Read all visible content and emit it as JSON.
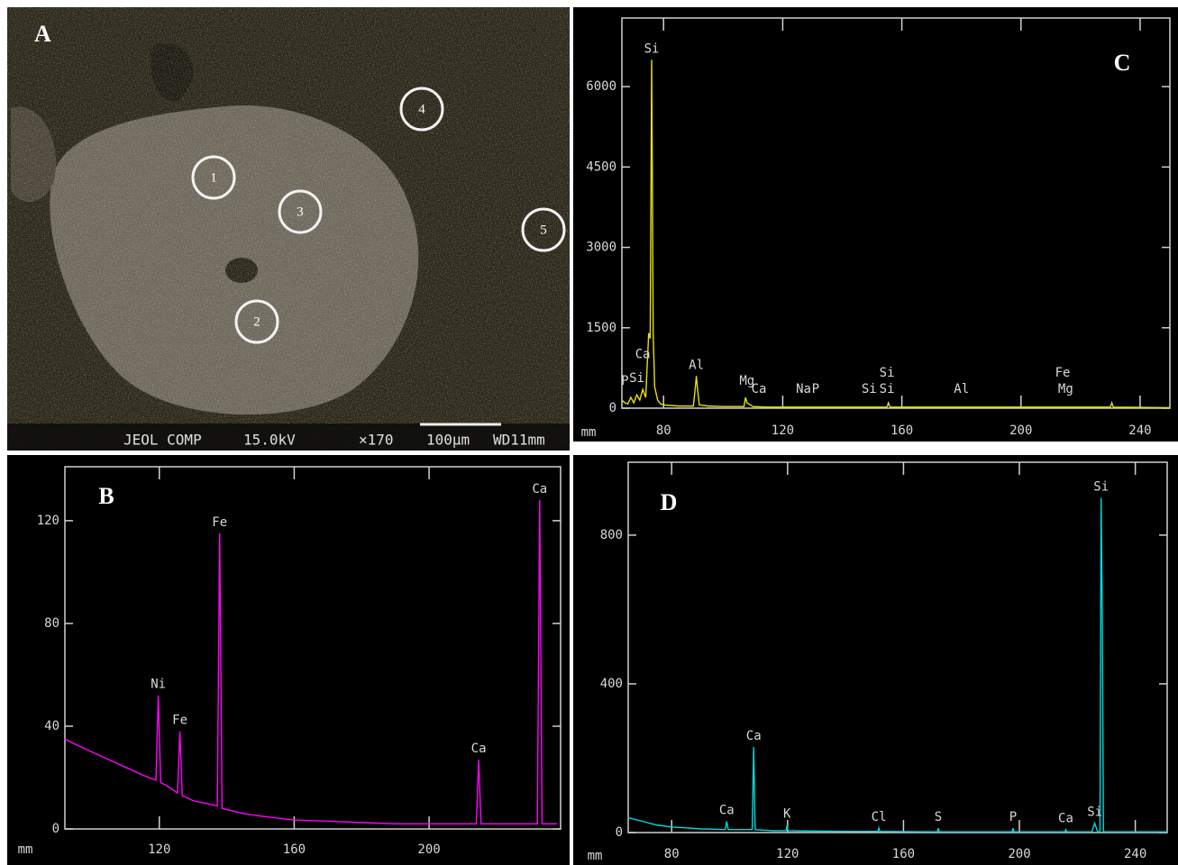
{
  "panel_a": {
    "label": "A",
    "spots": [
      "1",
      "2",
      "3",
      "4",
      "5"
    ],
    "info": {
      "detector": "JEOL COMP",
      "voltage": "15.0kV",
      "magnification": "×170",
      "scale": "100μm",
      "wd": "WD11mm"
    }
  },
  "chart_data": [
    {
      "type": "line",
      "panel": "B",
      "x_label": "mm",
      "color": "#ff00ff",
      "x": [
        92,
        95,
        100,
        105,
        110,
        115,
        119,
        119.7,
        120.4,
        122,
        125.4,
        126.1,
        126.8,
        130,
        137.2,
        137.9,
        138.6,
        145,
        150,
        160,
        170,
        180,
        190,
        200,
        210,
        214,
        214.7,
        215.4,
        220,
        230,
        232.1,
        232.8,
        233.5,
        238
      ],
      "values": [
        35,
        33,
        30,
        27,
        24,
        21,
        19,
        52,
        18,
        17,
        14,
        38,
        13,
        11,
        9,
        115,
        8,
        6,
        5,
        3.5,
        3,
        2.5,
        2,
        2,
        2,
        2,
        27,
        2,
        2,
        2,
        2,
        128,
        2,
        2
      ],
      "xlim": [
        92,
        239
      ],
      "ylim": [
        0,
        141
      ],
      "xticks": [
        120,
        160,
        200
      ],
      "yticks": [
        0,
        40,
        80,
        120
      ],
      "annotations": [
        {
          "text": "Ni",
          "x": 119.7,
          "y": 52
        },
        {
          "text": "Fe",
          "x": 126.1,
          "y": 38
        },
        {
          "text": "Fe",
          "x": 137.9,
          "y": 115
        },
        {
          "text": "Ca",
          "x": 214.7,
          "y": 27
        },
        {
          "text": "Ca",
          "x": 232.8,
          "y": 128
        }
      ]
    },
    {
      "type": "line",
      "panel": "C",
      "x_label": "mm",
      "color": "#e8e000",
      "x": [
        66,
        67,
        68,
        69,
        70,
        71,
        72,
        73,
        74,
        75,
        75.5,
        76,
        76.5,
        77,
        78,
        79,
        80,
        85,
        90,
        90.5,
        91,
        91.5,
        92,
        95,
        100,
        105,
        107,
        107.5,
        108,
        110,
        115,
        120,
        130,
        140,
        150,
        155,
        155.5,
        156,
        160,
        180,
        200,
        230,
        230.5,
        231,
        240,
        250
      ],
      "values": [
        150,
        100,
        80,
        200,
        100,
        250,
        150,
        350,
        200,
        1400,
        1300,
        6500,
        1400,
        400,
        150,
        80,
        60,
        40,
        40,
        300,
        600,
        300,
        60,
        40,
        30,
        30,
        30,
        200,
        100,
        30,
        20,
        20,
        20,
        20,
        20,
        20,
        100,
        20,
        20,
        20,
        20,
        20,
        100,
        20,
        15,
        10
      ],
      "xlim": [
        66,
        250
      ],
      "ylim": [
        0,
        7280
      ],
      "xticks": [
        80,
        120,
        160,
        200,
        240
      ],
      "yticks": [
        0,
        1500,
        3000,
        4500,
        6000
      ],
      "annotations": [
        {
          "text": "Si",
          "x": 76,
          "y": 6500
        },
        {
          "text": "Ca",
          "x": 73,
          "y": 800
        },
        {
          "text": "P",
          "x": 67,
          "y": 300
        },
        {
          "text": "Si",
          "x": 71,
          "y": 350
        },
        {
          "text": "Al",
          "x": 91,
          "y": 600
        },
        {
          "text": "Mg",
          "x": 108,
          "y": 300
        },
        {
          "text": "Ca",
          "x": 112,
          "y": 150
        },
        {
          "text": "Na",
          "x": 127,
          "y": 150
        },
        {
          "text": "P",
          "x": 131,
          "y": 150
        },
        {
          "text": "Si",
          "x": 149,
          "y": 150
        },
        {
          "text": "Si",
          "x": 155,
          "y": 150
        },
        {
          "text": "Si",
          "x": 155,
          "y": 450
        },
        {
          "text": "Al",
          "x": 180,
          "y": 150
        },
        {
          "text": "Fe",
          "x": 214,
          "y": 450
        },
        {
          "text": "Mg",
          "x": 215,
          "y": 150
        }
      ]
    },
    {
      "type": "line",
      "panel": "D",
      "x_label": "mm",
      "color": "#00d8e0",
      "x": [
        65,
        70,
        75,
        80,
        90,
        98.5,
        99,
        99.5,
        100,
        107.8,
        108.3,
        108.8,
        115,
        119.5,
        119.8,
        120.1,
        130,
        140,
        151.2,
        151.5,
        151.8,
        171.7,
        172,
        172.3,
        197.5,
        197.8,
        198.1,
        210,
        215.7,
        216,
        216.3,
        225,
        226,
        227,
        227.8,
        228.2,
        228.6,
        229,
        235,
        245,
        251
      ],
      "values": [
        40,
        30,
        20,
        15,
        10,
        8,
        30,
        8,
        8,
        8,
        230,
        8,
        5,
        5,
        20,
        5,
        4,
        3,
        3,
        12,
        3,
        2,
        12,
        2,
        2,
        12,
        2,
        2,
        2,
        8,
        2,
        2,
        25,
        2,
        2,
        900,
        590,
        2,
        2,
        2,
        2
      ],
      "xlim": [
        65,
        251
      ],
      "ylim": [
        0,
        996
      ],
      "xticks": [
        80,
        120,
        160,
        200,
        240
      ],
      "yticks": [
        0,
        400,
        800
      ],
      "annotations": [
        {
          "text": "Ca",
          "x": 99,
          "y": 30
        },
        {
          "text": "Ca",
          "x": 108.3,
          "y": 230
        },
        {
          "text": "K",
          "x": 119.8,
          "y": 20
        },
        {
          "text": "Cl",
          "x": 151.5,
          "y": 12
        },
        {
          "text": "S",
          "x": 172,
          "y": 12
        },
        {
          "text": "P",
          "x": 197.8,
          "y": 12
        },
        {
          "text": "Ca",
          "x": 216,
          "y": 8
        },
        {
          "text": "Si",
          "x": 226,
          "y": 25
        },
        {
          "text": "Si",
          "x": 228.2,
          "y": 900
        }
      ]
    }
  ]
}
